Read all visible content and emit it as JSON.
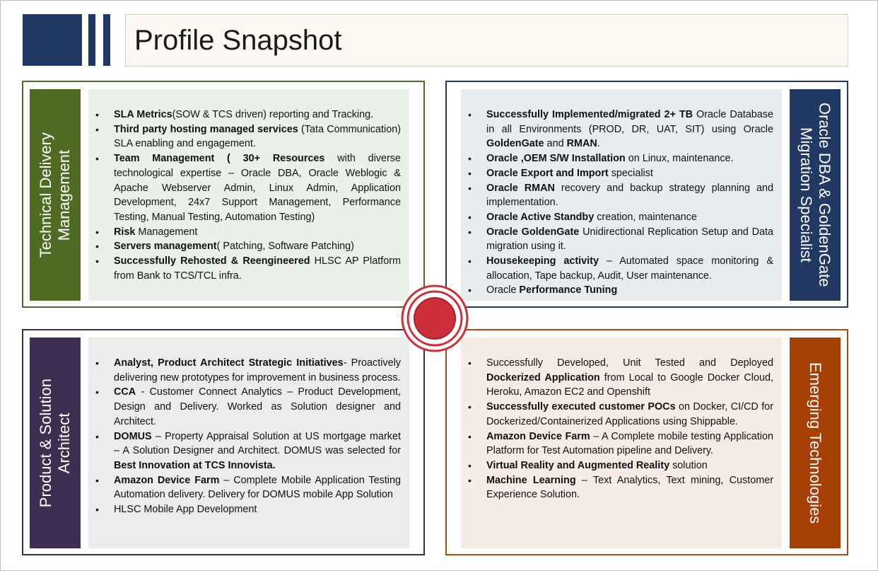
{
  "header": {
    "title": "Profile Snapshot"
  },
  "colors": {
    "navy": "#1f3864",
    "green": "#4e6a23",
    "purple": "#3f2e52",
    "orange": "#a63f05",
    "target_red": "#cc2f3a"
  },
  "quadrants": {
    "technical_delivery": {
      "label": "Technical Delivery\nManagement",
      "items": [
        [
          {
            "b": "SLA Metrics"
          },
          {
            "t": "(SOW & TCS driven) reporting and Tracking."
          }
        ],
        [
          {
            "b": "Third party hosting managed services"
          },
          {
            "t": " (Tata Communication) SLA enabling and engagement."
          }
        ],
        [
          {
            "b": "Team Management ( 30+ Resources"
          },
          {
            "t": " with diverse technological expertise – Oracle DBA, Oracle Weblogic & Apache Webserver Admin, Linux Admin, Application Development, 24x7 Support Management, Performance Testing, Manual Testing, Automation Testing)"
          }
        ],
        [
          {
            "b": "Risk"
          },
          {
            "t": " Management"
          }
        ],
        [
          {
            "b": "Servers management"
          },
          {
            "t": "( Patching, Software Patching)"
          }
        ],
        [
          {
            "b": "Successfully Rehosted & Reengineered"
          },
          {
            "t": " HLSC AP Platform from Bank to TCS/TCL infra."
          }
        ]
      ]
    },
    "oracle_dba": {
      "label": "Oracle DBA & GoldenGate\nMigration Specialist",
      "items": [
        [
          {
            "b": "Successfully Implemented/migrated 2+ TB"
          },
          {
            "t": " Oracle Database in all Environments (PROD, DR, UAT, SIT) using Oracle "
          },
          {
            "b": "GoldenGate"
          },
          {
            "t": " and "
          },
          {
            "b": "RMAN"
          },
          {
            "t": "."
          }
        ],
        [
          {
            "b": "Oracle ,OEM S/W Installation"
          },
          {
            "t": " on Linux, maintenance."
          }
        ],
        [
          {
            "b": "Oracle  Export and Import"
          },
          {
            "t": " specialist"
          }
        ],
        [
          {
            "b": "Oracle RMAN"
          },
          {
            "t": " recovery and backup strategy planning and implementation."
          }
        ],
        [
          {
            "b": "Oracle Active Standby"
          },
          {
            "t": " creation, maintenance"
          }
        ],
        [
          {
            "b": "Oracle GoldenGate"
          },
          {
            "t": " Unidirectional Replication Setup and Data migration using it."
          }
        ],
        [
          {
            "b": "Housekeeping activity"
          },
          {
            "t": " – Automated space monitoring & allocation, Tape backup, Audit, User maintenance."
          }
        ],
        [
          {
            "t": "Oracle "
          },
          {
            "b": "Performance Tuning"
          }
        ]
      ]
    },
    "product_solution": {
      "label": "Product & Solution\nArchitect",
      "items": [
        [
          {
            "b": "Analyst, Product Architect Strategic Initiatives"
          },
          {
            "t": "- Proactively delivering new prototypes for improvement in business process."
          }
        ],
        [
          {
            "b": "CCA"
          },
          {
            "t": " - Customer Connect Analytics – Product Development, Design and Delivery. Worked as Solution designer and Architect."
          }
        ],
        [
          {
            "b": "DOMUS"
          },
          {
            "t": " – Property Appraisal Solution at US mortgage market – A Solution Designer and Architect. DOMUS was selected for "
          },
          {
            "b": "Best Innovation at TCS Innovista."
          }
        ],
        [
          {
            "b": "Amazon Device Farm"
          },
          {
            "t": " – Complete Mobile Application Testing Automation delivery.  Delivery for DOMUS mobile App Solution"
          }
        ],
        [
          {
            "t": "HLSC Mobile App Development"
          }
        ]
      ]
    },
    "emerging_tech": {
      "label": "Emerging Technologies",
      "items": [
        [
          {
            "t": "Successfully Developed, Unit Tested and Deployed "
          },
          {
            "b": "Dockerized Application"
          },
          {
            "t": " from Local to Google Docker Cloud, Heroku, Amazon EC2 and Openshift"
          }
        ],
        [
          {
            "b": "Successfully executed customer POCs"
          },
          {
            "t": " on Docker, CI/CD for Dockerized/Containerized Applications using Shippable."
          }
        ],
        [
          {
            "b": "Amazon Device Farm"
          },
          {
            "t": " – A Complete mobile testing Application Platform for Test Automation pipeline and Delivery."
          }
        ],
        [
          {
            "b": "Virtual Reality and Augmented Reality"
          },
          {
            "t": " solution"
          }
        ],
        [
          {
            "b": "Machine Learning"
          },
          {
            "t": " – Text Analytics, Text mining, Customer Experience Solution."
          }
        ]
      ]
    }
  }
}
